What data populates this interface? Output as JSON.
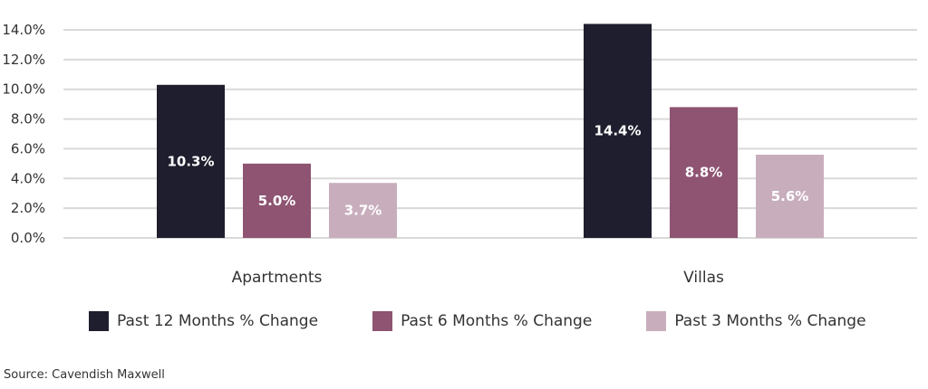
{
  "chart_data": {
    "type": "bar",
    "categories": [
      "Apartments",
      "Villas"
    ],
    "series": [
      {
        "name": "Past 12 Months % Change",
        "values": [
          10.3,
          14.4
        ],
        "labels": [
          "10.3%",
          "14.4%"
        ],
        "color": "#1e1e2e"
      },
      {
        "name": "Past 6 Months % Change",
        "values": [
          5.0,
          8.8
        ],
        "labels": [
          "5.0%",
          "8.8%"
        ],
        "color": "#8e5472"
      },
      {
        "name": "Past 3 Months % Change",
        "values": [
          3.7,
          5.6
        ],
        "labels": [
          "3.7%",
          "5.6%"
        ],
        "color": "#c8aebd"
      }
    ],
    "yticks": [
      "0.0%",
      "2.0%",
      "4.0%",
      "6.0%",
      "8.0%",
      "10.0%",
      "12.0%",
      "14.0%"
    ],
    "ylim": [
      0,
      14
    ],
    "grid": true,
    "legend_position": "bottom"
  },
  "source": "Source: Cavendish Maxwell"
}
